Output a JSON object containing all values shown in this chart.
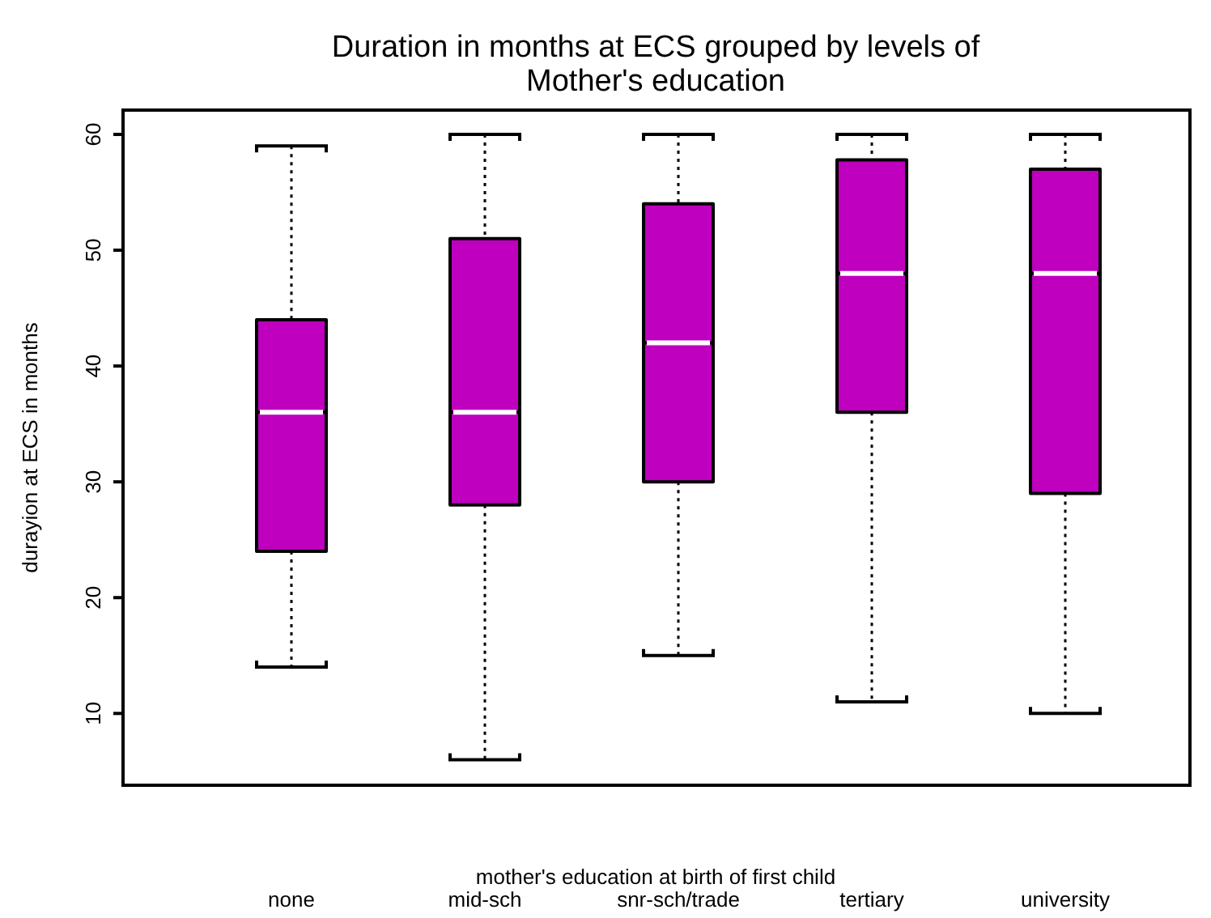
{
  "chart_data": {
    "type": "box",
    "title": "Duration in months at ECS grouped by levels of\nMother's education",
    "xlabel": "mother's education at birth of first child",
    "ylabel": "durayion at ECS in months",
    "categories": [
      "none",
      "mid-sch",
      "snr-sch/trade",
      "tertiary",
      "university"
    ],
    "series": [
      {
        "color": "#bf00bf",
        "boxes": [
          {
            "low": 14,
            "q1": 24,
            "median": 36,
            "q3": 44,
            "high": 59
          },
          {
            "low": 6,
            "q1": 28,
            "median": 36,
            "q3": 51,
            "high": 60
          },
          {
            "low": 15,
            "q1": 30,
            "median": 42,
            "q3": 54,
            "high": 60
          },
          {
            "low": 11,
            "q1": 36,
            "median": 48,
            "q3": 57.8,
            "high": 60
          },
          {
            "low": 10,
            "q1": 29,
            "median": 48,
            "q3": 57,
            "high": 60
          }
        ]
      }
    ],
    "ylim": [
      3.8,
      62.1
    ],
    "yticks": [
      10,
      20,
      30,
      40,
      50,
      60
    ],
    "grid": false
  }
}
